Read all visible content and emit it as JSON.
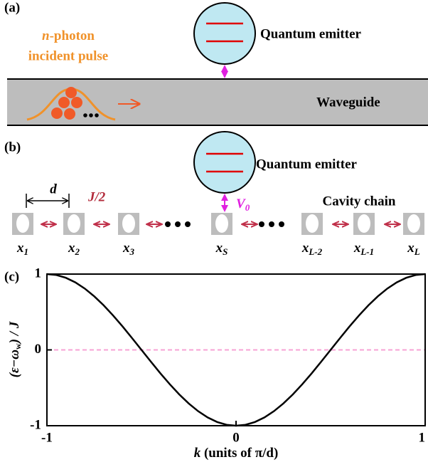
{
  "panels": {
    "a": {
      "label": "(a)",
      "emitter": "Quantum emitter",
      "pulse_n": "n",
      "pulse_rest": "-photon",
      "pulse_line2": "incident pulse",
      "waveguide": "Waveguide"
    },
    "b": {
      "label": "(b)",
      "emitter": "Quantum emitter",
      "spacing": "d",
      "coupling": "J/2",
      "emitter_coupling": {
        "base": "V",
        "sub": "0"
      },
      "chain": "Cavity chain",
      "sites": [
        {
          "base": "x",
          "sub": "1"
        },
        {
          "base": "x",
          "sub": "2"
        },
        {
          "base": "x",
          "sub": "3"
        },
        {
          "base": "x",
          "sub": "S"
        },
        {
          "base": "x",
          "sub": "L-2"
        },
        {
          "base": "x",
          "sub": "L-1"
        },
        {
          "base": "x",
          "sub": "L"
        }
      ]
    },
    "c": {
      "label": "(c)"
    }
  },
  "chart_data": {
    "type": "line",
    "xlabel": {
      "var": "k",
      "rest": " (units of π/d)"
    },
    "ylabel": {
      "pre": "(ε−ω",
      "sub": "w",
      "post": ") / J"
    },
    "x": [
      -1,
      -0.95,
      -0.9,
      -0.85,
      -0.8,
      -0.75,
      -0.7,
      -0.65,
      -0.6,
      -0.55,
      -0.5,
      -0.45,
      -0.4,
      -0.35,
      -0.3,
      -0.25,
      -0.2,
      -0.15,
      -0.1,
      -0.05,
      0,
      0.05,
      0.1,
      0.15,
      0.2,
      0.25,
      0.3,
      0.35,
      0.4,
      0.45,
      0.5,
      0.55,
      0.6,
      0.65,
      0.7,
      0.75,
      0.8,
      0.85,
      0.9,
      0.95,
      1
    ],
    "values": [
      1,
      0.988,
      0.951,
      0.891,
      0.809,
      0.707,
      0.588,
      0.454,
      0.309,
      0.156,
      0,
      -0.156,
      -0.309,
      -0.454,
      -0.588,
      -0.707,
      -0.809,
      -0.891,
      -0.951,
      -0.988,
      -1,
      -0.988,
      -0.951,
      -0.891,
      -0.809,
      -0.707,
      -0.588,
      -0.454,
      -0.309,
      -0.156,
      0,
      0.156,
      0.309,
      0.454,
      0.588,
      0.707,
      0.809,
      0.891,
      0.951,
      0.988,
      1
    ],
    "color": "#000000",
    "reference_line": {
      "value": 0,
      "color": "#f7a3d6"
    },
    "xlim": [
      -1,
      1
    ],
    "ylim": [
      -1,
      1
    ],
    "xticks": [
      -1,
      0,
      1
    ],
    "yticks": [
      -1,
      0,
      1
    ]
  }
}
